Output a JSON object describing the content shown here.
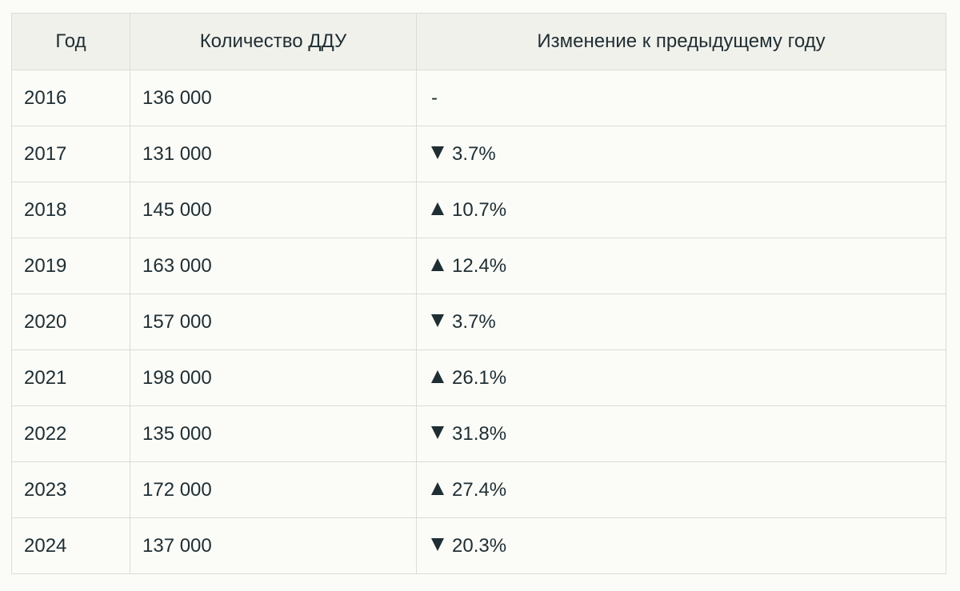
{
  "table": {
    "headers": {
      "year": "Год",
      "count": "Количество ДДУ",
      "change": "Изменение к предыдущему году"
    },
    "rows": [
      {
        "year": "2016",
        "count": "136 000",
        "direction": "none",
        "change": "-"
      },
      {
        "year": "2017",
        "count": "131 000",
        "direction": "down",
        "change": "3.7%"
      },
      {
        "year": "2018",
        "count": "145 000",
        "direction": "up",
        "change": "10.7%"
      },
      {
        "year": "2019",
        "count": "163 000",
        "direction": "up",
        "change": "12.4%"
      },
      {
        "year": "2020",
        "count": "157 000",
        "direction": "down",
        "change": "3.7%"
      },
      {
        "year": "2021",
        "count": "198 000",
        "direction": "up",
        "change": "26.1%"
      },
      {
        "year": "2022",
        "count": "135 000",
        "direction": "down",
        "change": "31.8%"
      },
      {
        "year": "2023",
        "count": "172 000",
        "direction": "up",
        "change": "27.4%"
      },
      {
        "year": "2024",
        "count": "137 000",
        "direction": "down",
        "change": "20.3%"
      }
    ]
  },
  "colors": {
    "text": "#1f2e33",
    "header_bg": "#f1f1ec",
    "border": "#dcdcd6",
    "page_bg": "#fbfbf7"
  }
}
